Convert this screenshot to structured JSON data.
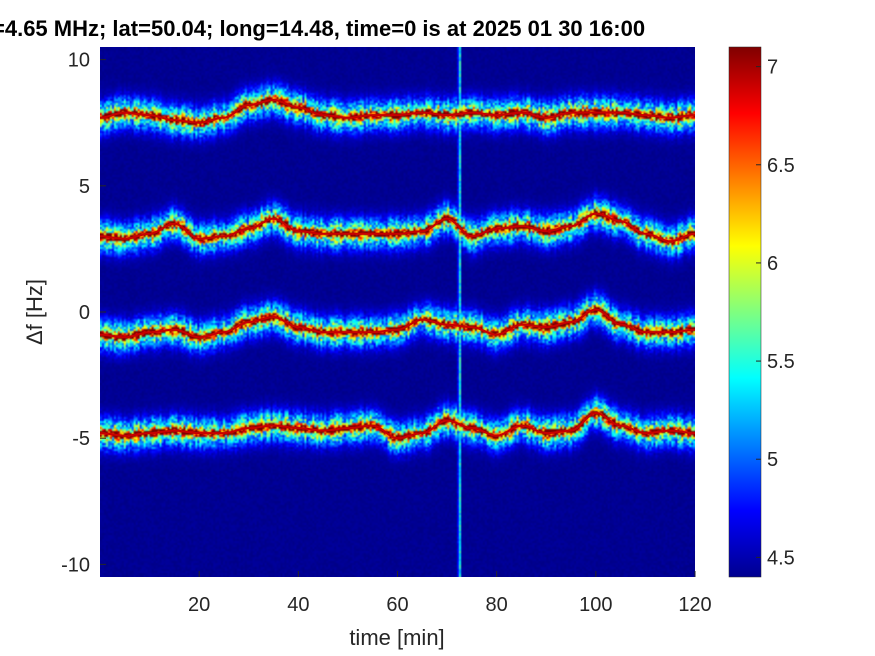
{
  "chart_data": {
    "type": "heatmap",
    "title": "=4.65 MHz;  lat=50.04; long=14.48, time=0 is at 2025 01 30 16:00",
    "xlabel": "time [min]",
    "ylabel": "Δf [Hz]",
    "xlim": [
      0,
      120
    ],
    "ylim": [
      -10.5,
      10.5
    ],
    "x_ticks": [
      20,
      40,
      60,
      80,
      100,
      120
    ],
    "x_tick_labels": [
      "20",
      "40",
      "60",
      "80",
      "100",
      "120"
    ],
    "y_ticks": [
      10,
      5,
      0,
      -5,
      -10
    ],
    "y_tick_labels": [
      "10",
      "5",
      "0",
      "-5",
      "-10"
    ],
    "colorbar": {
      "colormap": "jet",
      "range": [
        4.4,
        7.1
      ],
      "ticks": [
        7,
        6.5,
        6,
        5.5,
        5,
        4.5
      ],
      "tick_labels": [
        "7",
        "6.5",
        "6",
        "5.5",
        "5",
        "4.5"
      ]
    },
    "background_value": 4.45,
    "vertical_artifact_time": 72.5,
    "traces": [
      {
        "t": [
          0,
          5,
          10,
          15,
          20,
          25,
          30,
          35,
          40,
          45,
          50,
          55,
          60,
          65,
          70,
          75,
          80,
          85,
          90,
          95,
          100,
          105,
          110,
          115,
          120
        ],
        "f": [
          7.7,
          7.9,
          7.8,
          7.6,
          7.5,
          7.7,
          8.2,
          8.4,
          8.1,
          7.8,
          7.7,
          7.8,
          7.8,
          7.9,
          7.8,
          7.9,
          7.8,
          7.9,
          7.7,
          7.9,
          7.9,
          7.9,
          7.8,
          7.7,
          7.8
        ]
      },
      {
        "t": [
          0,
          5,
          10,
          15,
          20,
          25,
          30,
          35,
          40,
          45,
          50,
          55,
          60,
          65,
          70,
          75,
          80,
          85,
          90,
          95,
          100,
          105,
          110,
          115,
          120
        ],
        "f": [
          3.0,
          2.9,
          3.1,
          3.5,
          2.9,
          3.0,
          3.3,
          3.7,
          3.2,
          3.1,
          3.1,
          3.1,
          3.1,
          3.2,
          3.7,
          3.0,
          3.3,
          3.4,
          3.2,
          3.4,
          3.9,
          3.6,
          3.1,
          2.8,
          3.1
        ]
      },
      {
        "t": [
          0,
          5,
          10,
          15,
          20,
          25,
          30,
          35,
          40,
          45,
          50,
          55,
          60,
          65,
          70,
          75,
          80,
          85,
          90,
          95,
          100,
          105,
          110,
          115,
          120
        ],
        "f": [
          -0.9,
          -1.0,
          -0.8,
          -0.7,
          -1.0,
          -0.8,
          -0.4,
          -0.2,
          -0.6,
          -0.8,
          -0.8,
          -0.8,
          -0.7,
          -0.3,
          -0.5,
          -0.6,
          -0.9,
          -0.5,
          -0.6,
          -0.4,
          0.1,
          -0.5,
          -0.8,
          -0.8,
          -0.7
        ]
      },
      {
        "t": [
          0,
          5,
          10,
          15,
          20,
          25,
          30,
          35,
          40,
          45,
          50,
          55,
          60,
          65,
          70,
          75,
          80,
          85,
          90,
          95,
          100,
          105,
          110,
          115,
          120
        ],
        "f": [
          -4.8,
          -4.9,
          -4.8,
          -4.7,
          -4.8,
          -4.8,
          -4.6,
          -4.5,
          -4.6,
          -4.7,
          -4.6,
          -4.5,
          -5.0,
          -4.8,
          -4.3,
          -4.6,
          -4.9,
          -4.5,
          -4.8,
          -4.7,
          -4.0,
          -4.5,
          -4.8,
          -4.7,
          -4.8
        ]
      }
    ]
  }
}
